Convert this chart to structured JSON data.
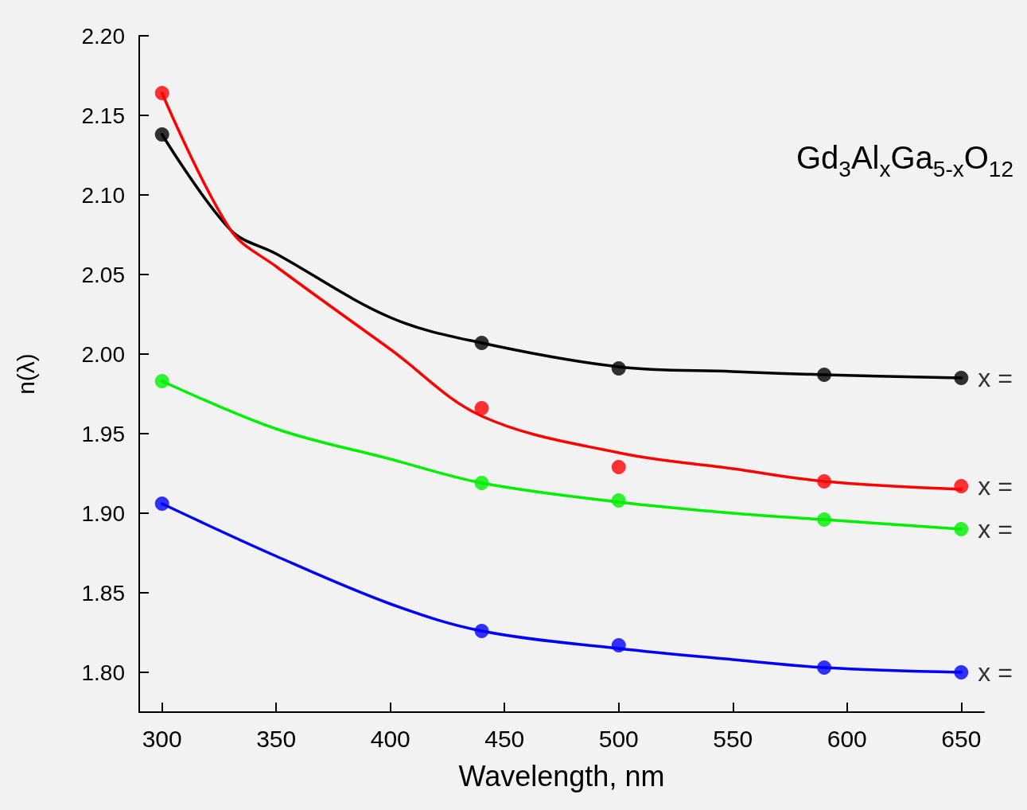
{
  "chart_data": {
    "type": "line",
    "title": "Gd$_{3}$Al$_{x}$Ga$_{5-x}$O$_{12}$",
    "xlabel": "Wavelength, nm",
    "ylabel": "n(λ)",
    "xlim": [
      290,
      660
    ],
    "xticks": [
      300,
      350,
      400,
      450,
      500,
      550,
      600,
      650
    ],
    "ylim": [
      1.775,
      2.2
    ],
    "yticks": [
      {
        "value": 1.8,
        "label": "1.80"
      },
      {
        "value": 1.85,
        "label": "1.85"
      },
      {
        "value": 1.9,
        "label": "1.90"
      },
      {
        "value": 1.95,
        "label": "1.95"
      },
      {
        "value": 2.0,
        "label": "2.00"
      },
      {
        "value": 2.05,
        "label": "2.05"
      },
      {
        "value": 2.1,
        "label": "2.10"
      },
      {
        "value": 2.15,
        "label": "2.15"
      },
      {
        "value": 2.2,
        "label": "2.20"
      }
    ],
    "grid": false,
    "line_style": "solid",
    "series": [
      {
        "type": "line",
        "marker": "none",
        "color": "#000000",
        "x": [
          300,
          330,
          350,
          400,
          440,
          500,
          550,
          590,
          650
        ],
        "values": [
          2.138,
          2.078,
          2.063,
          2.023,
          2.007,
          1.992,
          1.989,
          1.987,
          1.985
        ]
      },
      {
        "type": "line",
        "marker": "none",
        "color": "#ff0000",
        "x": [
          300,
          330,
          350,
          400,
          440,
          500,
          550,
          590,
          650
        ],
        "values": [
          2.164,
          2.078,
          2.055,
          2.003,
          1.961,
          1.938,
          1.928,
          1.92,
          1.915
        ]
      },
      {
        "type": "line",
        "marker": "none",
        "color": "#00ee00",
        "x": [
          300,
          350,
          400,
          440,
          500,
          550,
          590,
          650
        ],
        "values": [
          1.983,
          1.953,
          1.934,
          1.919,
          1.907,
          1.9,
          1.896,
          1.89
        ]
      },
      {
        "type": "line",
        "marker": "none",
        "color": "#0000ff",
        "x": [
          300,
          350,
          400,
          440,
          500,
          550,
          590,
          650
        ],
        "values": [
          1.906,
          1.873,
          1.843,
          1.826,
          1.815,
          1.808,
          1.803,
          1.8
        ]
      },
      {
        "type": "scatter",
        "name": "x =",
        "marker": "circle",
        "color": "#000000",
        "x": [
          300,
          440,
          500,
          590,
          650
        ],
        "values": [
          2.138,
          2.007,
          1.991,
          1.987,
          1.985
        ]
      },
      {
        "type": "scatter",
        "name": "x =",
        "marker": "circle",
        "color": "#ff0000",
        "x": [
          300,
          440,
          500,
          590,
          650
        ],
        "values": [
          2.164,
          1.966,
          1.929,
          1.92,
          1.917
        ]
      },
      {
        "type": "scatter",
        "name": "x =",
        "marker": "circle",
        "color": "#00ee00",
        "x": [
          300,
          440,
          500,
          590,
          650
        ],
        "values": [
          1.983,
          1.919,
          1.908,
          1.896,
          1.89
        ]
      },
      {
        "type": "scatter",
        "name": "x =",
        "marker": "circle",
        "color": "#0000ff",
        "x": [
          300,
          440,
          500,
          590,
          650
        ],
        "values": [
          1.906,
          1.826,
          1.817,
          1.803,
          1.8
        ]
      }
    ]
  }
}
